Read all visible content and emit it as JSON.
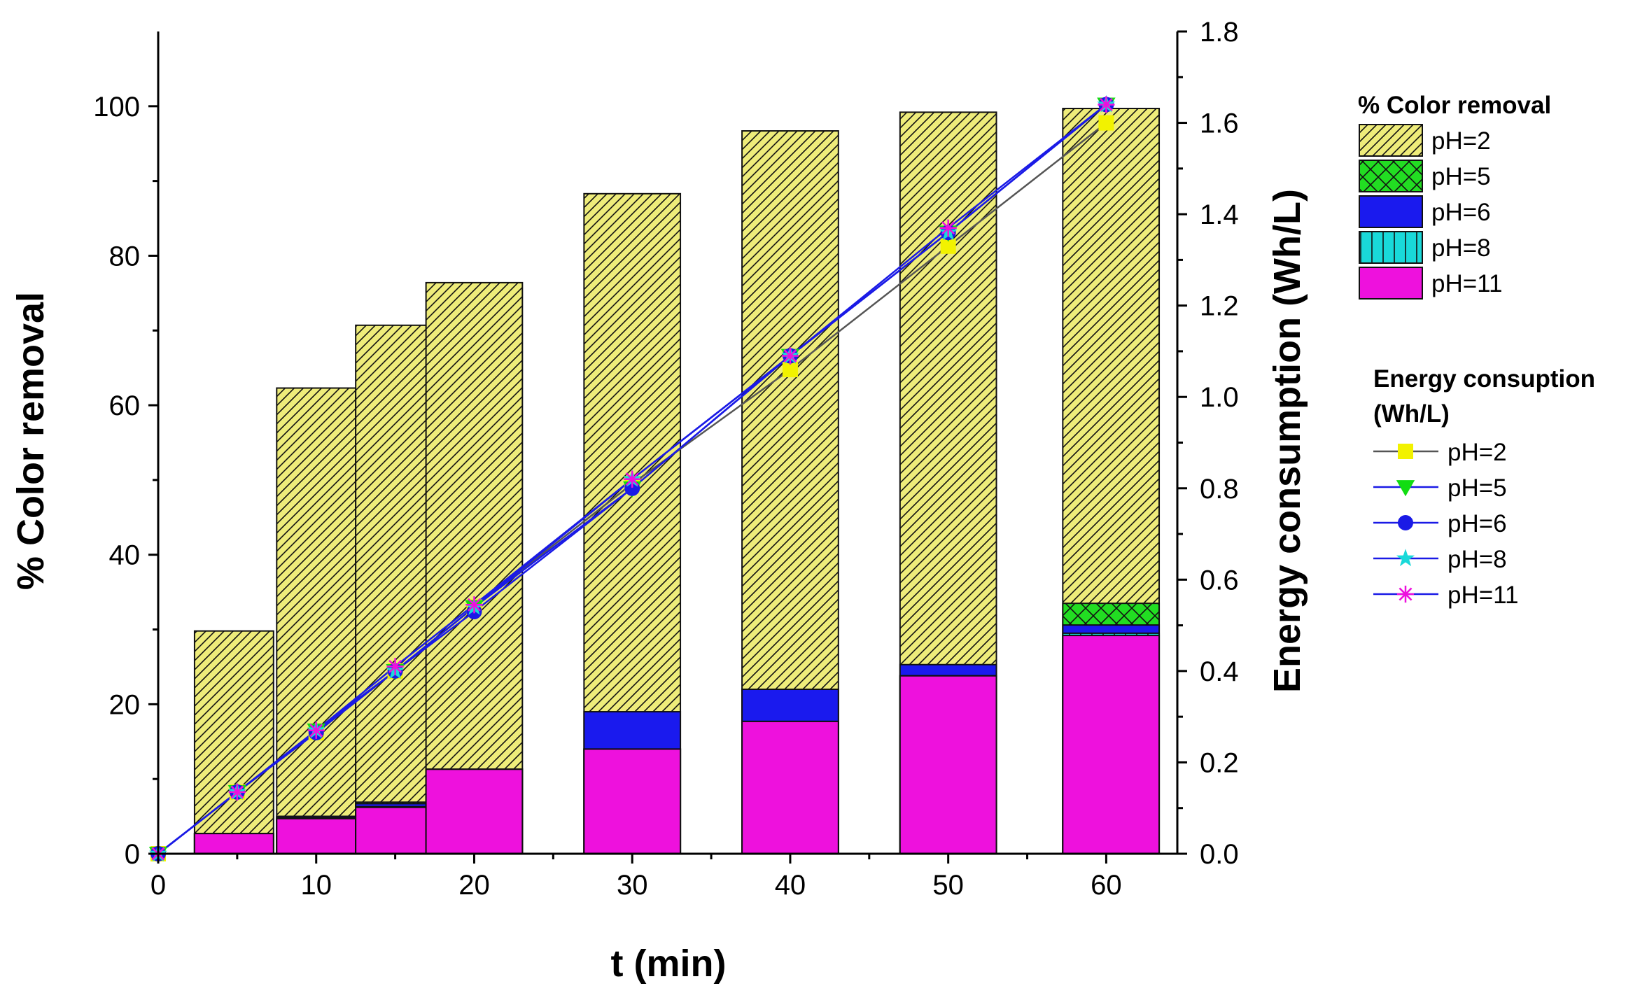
{
  "chart_data": {
    "type": "bar+line",
    "xlabel": "t (min)",
    "ylabel_left": "% Color removal",
    "ylabel_right": "Energy consumption (Wh/L)",
    "x_ticks": [
      "0",
      "10",
      "20",
      "30",
      "40",
      "50",
      "60"
    ],
    "x_tick_values": [
      0,
      10,
      20,
      30,
      40,
      50,
      60
    ],
    "xlim": [
      0,
      64.5
    ],
    "ylim_left": [
      0,
      110
    ],
    "ylim_right": [
      0,
      1.8
    ],
    "y_left_ticks": [
      "0",
      "20",
      "40",
      "60",
      "80",
      "100"
    ],
    "y_left_tick_values": [
      0,
      20,
      40,
      60,
      80,
      100
    ],
    "y_right_ticks": [
      "0.0",
      "0.2",
      "0.4",
      "0.6",
      "0.8",
      "1.0",
      "1.2",
      "1.4",
      "1.6",
      "1.8"
    ],
    "y_right_tick_values": [
      0,
      0.2,
      0.4,
      0.6,
      0.8,
      1.0,
      1.2,
      1.4,
      1.6,
      1.8
    ],
    "bar_series": {
      "legend_title": "% Color removal",
      "times": [
        5,
        10,
        15,
        20,
        30,
        40,
        50,
        60
      ],
      "series": [
        {
          "name": "pH=2",
          "color": "#eeec7a",
          "pattern": "hatch",
          "values": [
            29.8,
            62.3,
            70.7,
            76.4,
            88.3,
            96.7,
            99.2,
            99.7
          ]
        },
        {
          "name": "pH=5",
          "color": "#22dd22",
          "pattern": "crosshatch",
          "values": [
            2.7,
            5.0,
            6.9,
            11.3,
            14.0,
            17.7,
            23.8,
            33.5
          ]
        },
        {
          "name": "pH=6",
          "color": "#1a1aee",
          "pattern": "solid",
          "values": [
            2.7,
            5.0,
            6.7,
            11.3,
            19.0,
            22.0,
            25.3,
            30.6
          ]
        },
        {
          "name": "pH=8",
          "color": "#19d9d9",
          "pattern": "vlines",
          "values": [
            2.7,
            4.8,
            6.3,
            11.3,
            14.0,
            17.7,
            23.8,
            29.5
          ]
        },
        {
          "name": "pH=11",
          "color": "#ee11dd",
          "pattern": "solid",
          "values": [
            2.7,
            4.7,
            6.2,
            11.3,
            14.0,
            17.7,
            23.8,
            29.2
          ]
        }
      ]
    },
    "line_series": {
      "legend_title_line1": "Energy consuption",
      "legend_title_line2": "(Wh/L)",
      "x": [
        0,
        5,
        10,
        15,
        20,
        30,
        40,
        50,
        60
      ],
      "series": [
        {
          "name": "pH=2",
          "line_color": "#555555",
          "marker": "square",
          "marker_color": "#f2f200",
          "values": [
            0,
            0.135,
            0.265,
            0.4,
            0.54,
            0.81,
            1.06,
            1.33,
            1.6
          ]
        },
        {
          "name": "pH=5",
          "line_color": "#1a1ae6",
          "marker": "triangle-down",
          "marker_color": "#11dd11",
          "values": [
            0,
            0.135,
            0.27,
            0.4,
            0.54,
            0.8,
            1.09,
            1.36,
            1.64
          ]
        },
        {
          "name": "pH=6",
          "line_color": "#1a1ae6",
          "marker": "circle",
          "marker_color": "#1a1ae6",
          "values": [
            0,
            0.135,
            0.265,
            0.4,
            0.53,
            0.8,
            1.09,
            1.36,
            1.64
          ]
        },
        {
          "name": "pH=8",
          "line_color": "#1a1ae6",
          "marker": "star",
          "marker_color": "#19d9d9",
          "values": [
            0,
            0.135,
            0.27,
            0.4,
            0.54,
            0.82,
            1.09,
            1.36,
            1.64
          ]
        },
        {
          "name": "pH=11",
          "line_color": "#1a1ae6",
          "marker": "asterisk",
          "marker_color": "#ee11dd",
          "values": [
            0,
            0.135,
            0.27,
            0.41,
            0.545,
            0.82,
            1.09,
            1.37,
            1.64
          ]
        }
      ]
    }
  }
}
